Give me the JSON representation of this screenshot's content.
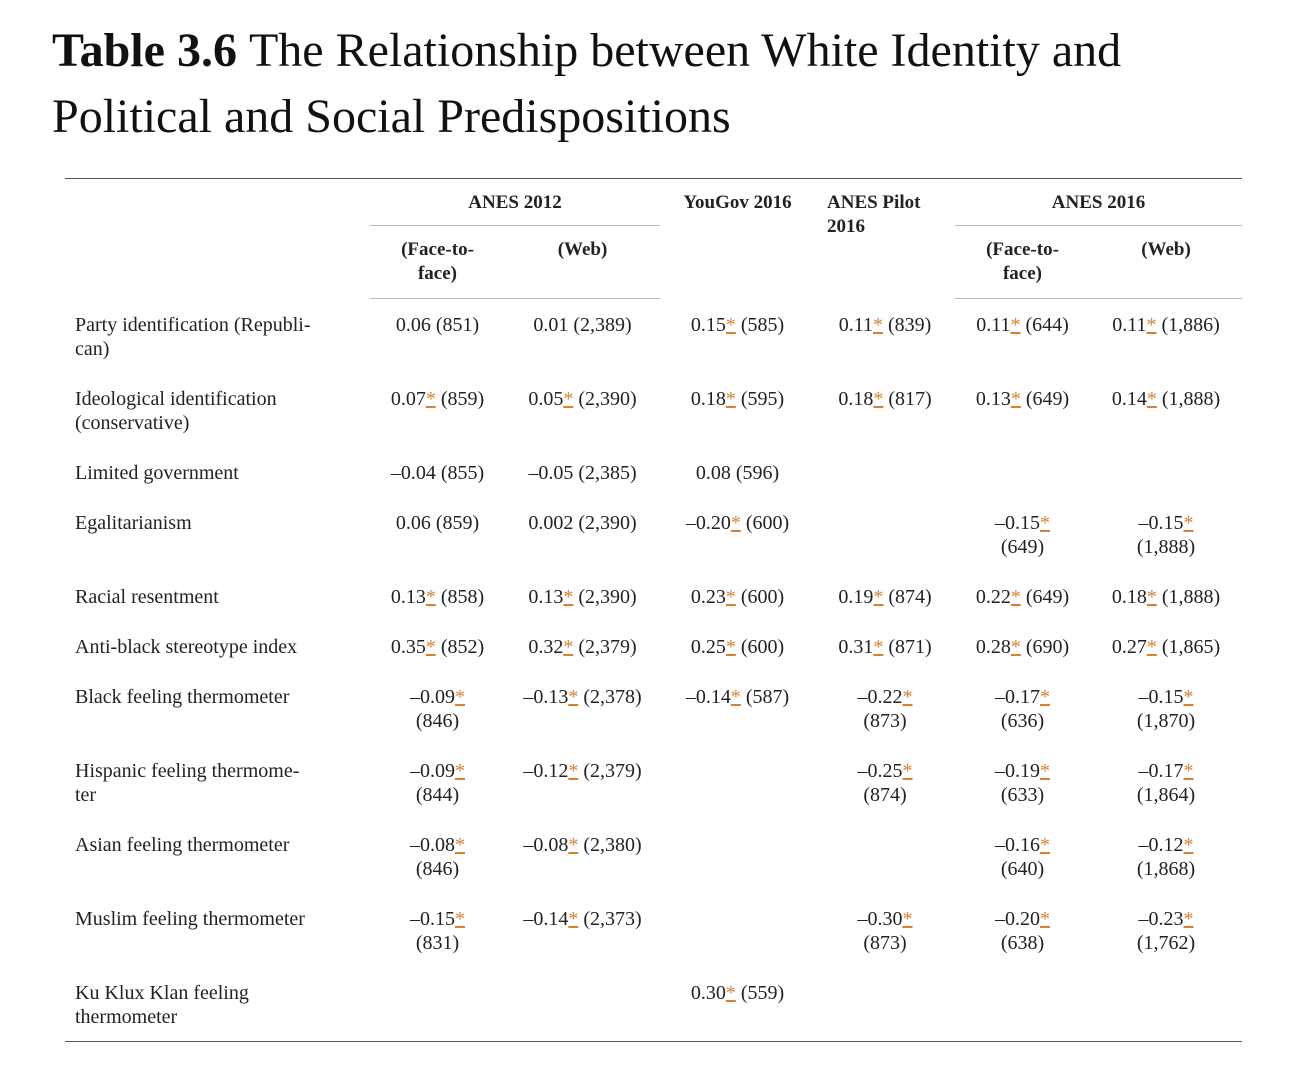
{
  "header": {
    "label": "Table 3.6",
    "title": "The Relationship between White Identity and Political and Social Predispositions"
  },
  "table": {
    "columns": [
      {
        "label": "ANES 2012",
        "sub": [
          [
            "(Face-to-",
            "face)"
          ],
          "(Web)"
        ]
      },
      {
        "label": "YouGov 2016"
      },
      {
        "label": [
          "ANES Pilot",
          "2016"
        ]
      },
      {
        "label": "ANES 2016",
        "sub": [
          [
            "(Face-to-",
            "face)"
          ],
          "(Web)"
        ]
      }
    ],
    "rows": [
      {
        "label": [
          "Party identification (Republi-",
          "can)"
        ],
        "cells": [
          "0.06 (851)",
          "0.01 (2,389)",
          "0.15* (585)",
          "0.11* (839)",
          "0.11* (644)",
          "0.11* (1,886)"
        ]
      },
      {
        "label": [
          "Ideological identification",
          "(conservative)"
        ],
        "cells": [
          "0.07* (859)",
          "0.05* (2,390)",
          "0.18* (595)",
          "0.18* (817)",
          "0.13* (649)",
          "0.14* (1,888)"
        ]
      },
      {
        "label": "Limited government",
        "cells": [
          "–0.04 (855)",
          "–0.05 (2,385)",
          "0.08 (596)",
          null,
          null,
          null
        ]
      },
      {
        "label": "Egalitarianism",
        "cells": [
          "0.06 (859)",
          "0.002 (2,390)",
          "–0.20* (600)",
          null,
          [
            "–0.15*",
            "(649)"
          ],
          [
            "–0.15*",
            "(1,888)"
          ]
        ]
      },
      {
        "label": "Racial resentment",
        "cells": [
          "0.13* (858)",
          "0.13* (2,390)",
          "0.23* (600)",
          "0.19* (874)",
          "0.22* (649)",
          "0.18* (1,888)"
        ]
      },
      {
        "label": "Anti-black stereotype index",
        "cells": [
          "0.35* (852)",
          "0.32* (2,379)",
          "0.25* (600)",
          "0.31* (871)",
          "0.28* (690)",
          "0.27* (1,865)"
        ]
      },
      {
        "label": "Black feeling thermometer",
        "cells": [
          [
            "–0.09*",
            "(846)"
          ],
          "–0.13* (2,378)",
          "–0.14* (587)",
          [
            "–0.22*",
            "(873)"
          ],
          [
            "–0.17*",
            "(636)"
          ],
          [
            "–0.15*",
            "(1,870)"
          ]
        ]
      },
      {
        "label": [
          "Hispanic feeling thermome-",
          "ter"
        ],
        "cells": [
          [
            "–0.09*",
            "(844)"
          ],
          "–0.12* (2,379)",
          null,
          [
            "–0.25*",
            "(874)"
          ],
          [
            "–0.19*",
            "(633)"
          ],
          [
            "–0.17*",
            "(1,864)"
          ]
        ]
      },
      {
        "label": "Asian feeling thermometer",
        "cells": [
          [
            "–0.08*",
            "(846)"
          ],
          "–0.08* (2,380)",
          null,
          null,
          [
            "–0.16*",
            "(640)"
          ],
          [
            "–0.12*",
            "(1,868)"
          ]
        ]
      },
      {
        "label": "Muslim feeling thermometer",
        "cells": [
          [
            "–0.15*",
            "(831)"
          ],
          "–0.14* (2,373)",
          null,
          [
            "–0.30*",
            "(873)"
          ],
          [
            "–0.20*",
            "(638)"
          ],
          [
            "–0.23*",
            "(1,762)"
          ]
        ]
      },
      {
        "label": [
          "Ku Klux Klan feeling",
          "thermometer"
        ],
        "cells": [
          null,
          null,
          "0.30* (559)",
          null,
          null,
          null
        ]
      }
    ]
  }
}
